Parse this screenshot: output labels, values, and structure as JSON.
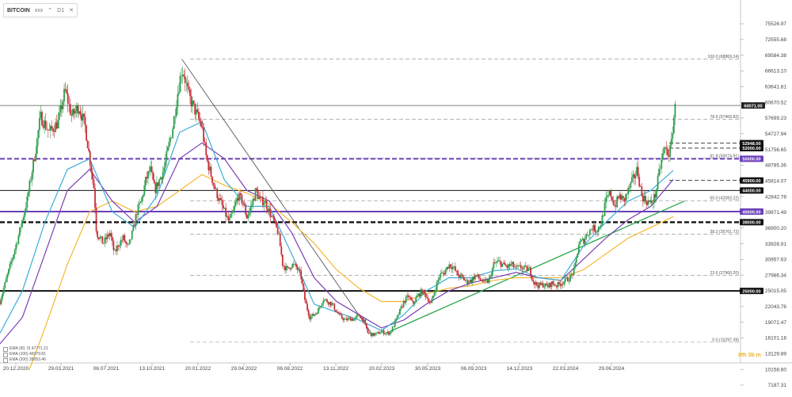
{
  "header": {
    "symbol": "BITCOIN",
    "symbol_suffix": "xxx",
    "dropdown_icon": "caret-down",
    "interval": "D1",
    "close_icon": "close-x"
  },
  "legend": [
    {
      "text": "EMA (50, 0) 47771.21",
      "color": "#3aaed8"
    },
    {
      "text": "EMA (100) 46079.81",
      "color": "#7b3fb5"
    },
    {
      "text": "EMA (200) 39053.46",
      "color": "#f5b830"
    }
  ],
  "brand": "8th 3b m",
  "chart_data": {
    "type": "candlestick",
    "y_axis_ticks": [
      "75526.97",
      "72555.68",
      "69584.38",
      "66613.10",
      "63641.81",
      "60670.52",
      "57699.23",
      "54727.94",
      "51756.65",
      "48785.36",
      "45814.07",
      "42842.78",
      "39871.49",
      "36900.20",
      "33928.91",
      "30957.63",
      "27986.34",
      "25015.05",
      "22043.76",
      "19072.47",
      "16101.18",
      "13129.89",
      "10158.60",
      "7187.31"
    ],
    "y_axis_values": [
      75526.97,
      72555.68,
      69584.38,
      66613.1,
      63641.81,
      60670.52,
      57699.23,
      54727.94,
      51756.65,
      48785.36,
      45814.07,
      42842.78,
      39871.49,
      36900.2,
      33928.91,
      30957.63,
      27986.34,
      25015.05,
      22043.76,
      19072.47,
      16101.18,
      13129.89,
      10158.6,
      7187.31
    ],
    "x_axis_ticks": [
      "20.12.2020",
      "29.03.2021",
      "06.07.2021",
      "13.10.2021",
      "20.01.2022",
      "29.04.2022",
      "06.08.2022",
      "13.11.2022",
      "20.02.2023",
      "30.05.2023",
      "06.09.2023",
      "14.12.2023",
      "22.03.2024",
      "29.06.2024"
    ],
    "current_price": {
      "label": "60071.00",
      "value": 60071.0
    },
    "fib_levels": [
      {
        "label": "100.0 (68869.24)",
        "value": 68869.24
      },
      {
        "label": "78.6 (57469.82)",
        "value": 57469.82
      },
      {
        "label": "61.8 (50074.91)",
        "value": 50074.91
      },
      {
        "label": "50.0 (42083.22)",
        "value": 42083.22
      },
      {
        "label": "38.2 (35761.72)",
        "value": 35761.72
      },
      {
        "label": "23.6 (27960.20)",
        "value": 27960.2
      },
      {
        "label": "0.0 (15297.39)",
        "value": 15297.39
      }
    ],
    "dashed_levels": [
      {
        "label": "52948.00",
        "value": 52948
      },
      {
        "label": "52000.00",
        "value": 52000
      },
      {
        "label": "45900.00",
        "value": 45900
      }
    ],
    "solid_levels": [
      {
        "label": "44000.00",
        "value": 44000
      },
      {
        "label": "25000.00",
        "value": 25000
      }
    ],
    "purple_levels": [
      {
        "label": "50000.00",
        "value": 50000,
        "dashed": true
      },
      {
        "label": "40000.00",
        "value": 40000,
        "dashed": false
      }
    ],
    "thick_dashed_levels": [
      {
        "label": "38000.00",
        "value": 38000
      }
    ],
    "price_path": [
      [
        0,
        23000
      ],
      [
        0.4,
        29000
      ],
      [
        0.8,
        35000
      ],
      [
        1.2,
        42000
      ],
      [
        1.6,
        52000
      ],
      [
        1.8,
        58000
      ],
      [
        2.2,
        55000
      ],
      [
        2.6,
        57000
      ],
      [
        2.9,
        63000
      ],
      [
        3.2,
        58000
      ],
      [
        3.5,
        60000
      ],
      [
        3.8,
        56000
      ],
      [
        4.0,
        50000
      ],
      [
        4.2,
        44000
      ],
      [
        4.3,
        36000
      ],
      [
        4.6,
        34000
      ],
      [
        4.9,
        36000
      ],
      [
        5.1,
        32000
      ],
      [
        5.3,
        34000
      ],
      [
        5.5,
        35000
      ],
      [
        5.7,
        33000
      ],
      [
        5.9,
        36000
      ],
      [
        6.1,
        40000
      ],
      [
        6.3,
        42000
      ],
      [
        6.5,
        46000
      ],
      [
        6.7,
        48000
      ],
      [
        6.9,
        44000
      ],
      [
        7.1,
        46000
      ],
      [
        7.3,
        48000
      ],
      [
        7.5,
        52000
      ],
      [
        7.7,
        56000
      ],
      [
        7.9,
        62000
      ],
      [
        8.1,
        67000
      ],
      [
        8.2,
        66000
      ],
      [
        8.4,
        62000
      ],
      [
        8.6,
        60000
      ],
      [
        8.8,
        58000
      ],
      [
        9.0,
        56000
      ],
      [
        9.2,
        50000
      ],
      [
        9.4,
        47000
      ],
      [
        9.6,
        44000
      ],
      [
        9.8,
        42000
      ],
      [
        10.0,
        40000
      ],
      [
        10.2,
        38000
      ],
      [
        10.4,
        40000
      ],
      [
        10.6,
        43000
      ],
      [
        10.8,
        42000
      ],
      [
        11.0,
        39000
      ],
      [
        11.2,
        41000
      ],
      [
        11.4,
        44000
      ],
      [
        11.6,
        42000
      ],
      [
        11.8,
        42000
      ],
      [
        12.0,
        40000
      ],
      [
        12.2,
        38000
      ],
      [
        12.4,
        36000
      ],
      [
        12.6,
        30000
      ],
      [
        12.8,
        29000
      ],
      [
        13.0,
        30000
      ],
      [
        13.2,
        29500
      ],
      [
        13.4,
        28000
      ],
      [
        13.6,
        23000
      ],
      [
        13.8,
        20000
      ],
      [
        14.0,
        20500
      ],
      [
        14.2,
        21500
      ],
      [
        14.4,
        23500
      ],
      [
        14.6,
        23000
      ],
      [
        14.8,
        22500
      ],
      [
        15.0,
        21000
      ],
      [
        15.2,
        20000
      ],
      [
        15.4,
        19500
      ],
      [
        15.6,
        19800
      ],
      [
        15.8,
        19600
      ],
      [
        16.0,
        20500
      ],
      [
        16.2,
        19500
      ],
      [
        16.4,
        17000
      ],
      [
        16.6,
        16700
      ],
      [
        16.8,
        16900
      ],
      [
        17.0,
        17300
      ],
      [
        17.2,
        17000
      ],
      [
        17.4,
        17100
      ],
      [
        17.6,
        19000
      ],
      [
        17.8,
        21000
      ],
      [
        18.0,
        23000
      ],
      [
        18.2,
        24000
      ],
      [
        18.4,
        22500
      ],
      [
        18.6,
        24000
      ],
      [
        18.8,
        25000
      ],
      [
        19.0,
        24000
      ],
      [
        19.2,
        22500
      ],
      [
        19.4,
        25500
      ],
      [
        19.6,
        28000
      ],
      [
        19.8,
        28500
      ],
      [
        20.0,
        30000
      ],
      [
        20.2,
        29500
      ],
      [
        20.4,
        28000
      ],
      [
        20.6,
        27500
      ],
      [
        20.8,
        26700
      ],
      [
        21.0,
        27000
      ],
      [
        21.2,
        28000
      ],
      [
        21.4,
        27200
      ],
      [
        21.6,
        26500
      ],
      [
        21.8,
        27000
      ],
      [
        22.0,
        30000
      ],
      [
        22.2,
        30500
      ],
      [
        22.4,
        30000
      ],
      [
        22.6,
        29500
      ],
      [
        22.8,
        30000
      ],
      [
        23.0,
        29200
      ],
      [
        23.2,
        29500
      ],
      [
        23.4,
        29200
      ],
      [
        23.6,
        29000
      ],
      [
        23.8,
        26500
      ],
      [
        24.0,
        26000
      ],
      [
        24.2,
        26200
      ],
      [
        24.4,
        25800
      ],
      [
        24.6,
        26500
      ],
      [
        24.8,
        26000
      ],
      [
        25.0,
        26500
      ],
      [
        25.2,
        27000
      ],
      [
        25.4,
        27500
      ],
      [
        25.6,
        29000
      ],
      [
        25.8,
        34000
      ],
      [
        26.0,
        34500
      ],
      [
        26.2,
        36000
      ],
      [
        26.4,
        37000
      ],
      [
        26.6,
        36500
      ],
      [
        26.8,
        38000
      ],
      [
        27.0,
        42000
      ],
      [
        27.2,
        43500
      ],
      [
        27.4,
        41000
      ],
      [
        27.6,
        43000
      ],
      [
        27.8,
        42000
      ],
      [
        28.0,
        44000
      ],
      [
        28.2,
        46000
      ],
      [
        28.4,
        48000
      ],
      [
        28.6,
        43000
      ],
      [
        28.8,
        42000
      ],
      [
        29.0,
        41500
      ],
      [
        29.2,
        43000
      ],
      [
        29.4,
        48000
      ],
      [
        29.6,
        52000
      ],
      [
        29.8,
        51000
      ],
      [
        29.9,
        52000
      ],
      [
        30.0,
        57000
      ],
      [
        30.1,
        60071
      ]
    ],
    "ema_50": [
      [
        0,
        17000
      ],
      [
        1,
        25000
      ],
      [
        2,
        38000
      ],
      [
        3,
        48000
      ],
      [
        4,
        50000
      ],
      [
        5,
        40000
      ],
      [
        6,
        37000
      ],
      [
        7,
        43000
      ],
      [
        8,
        55000
      ],
      [
        9,
        57000
      ],
      [
        10,
        46000
      ],
      [
        11,
        41000
      ],
      [
        12,
        41000
      ],
      [
        13,
        32000
      ],
      [
        14,
        22500
      ],
      [
        15,
        21000
      ],
      [
        16,
        19500
      ],
      [
        17,
        17500
      ],
      [
        18,
        20500
      ],
      [
        19,
        25000
      ],
      [
        20,
        27500
      ],
      [
        21,
        27500
      ],
      [
        22,
        28800
      ],
      [
        23,
        29200
      ],
      [
        24,
        27500
      ],
      [
        25,
        27000
      ],
      [
        26,
        33500
      ],
      [
        27,
        38000
      ],
      [
        28,
        42000
      ],
      [
        29,
        44000
      ],
      [
        30,
        47771
      ]
    ],
    "ema_100": [
      [
        0,
        15000
      ],
      [
        1,
        20000
      ],
      [
        2,
        32000
      ],
      [
        3,
        44000
      ],
      [
        4,
        48000
      ],
      [
        5,
        42000
      ],
      [
        6,
        38000
      ],
      [
        7,
        41000
      ],
      [
        8,
        50000
      ],
      [
        9,
        53000
      ],
      [
        10,
        50000
      ],
      [
        11,
        44000
      ],
      [
        12,
        42000
      ],
      [
        13,
        36000
      ],
      [
        14,
        27500
      ],
      [
        15,
        23000
      ],
      [
        16,
        20500
      ],
      [
        17,
        18000
      ],
      [
        18,
        19500
      ],
      [
        19,
        22500
      ],
      [
        20,
        25000
      ],
      [
        21,
        26500
      ],
      [
        22,
        27500
      ],
      [
        23,
        28500
      ],
      [
        24,
        27500
      ],
      [
        25,
        27000
      ],
      [
        26,
        31000
      ],
      [
        27,
        35000
      ],
      [
        28,
        38500
      ],
      [
        29,
        41000
      ],
      [
        30,
        46079
      ]
    ],
    "ema_200": [
      [
        1.3,
        10000
      ],
      [
        2,
        18000
      ],
      [
        3,
        30000
      ],
      [
        4,
        40000
      ],
      [
        5,
        42000
      ],
      [
        6,
        40000
      ],
      [
        7,
        41000
      ],
      [
        8,
        44000
      ],
      [
        9,
        47000
      ],
      [
        10,
        45000
      ],
      [
        11,
        43500
      ],
      [
        12,
        41500
      ],
      [
        13,
        38000
      ],
      [
        14,
        34000
      ],
      [
        15,
        29000
      ],
      [
        16,
        25500
      ],
      [
        17,
        23000
      ],
      [
        18,
        23000
      ],
      [
        19,
        24500
      ],
      [
        20,
        25500
      ],
      [
        21,
        26000
      ],
      [
        22,
        27000
      ],
      [
        23,
        27500
      ],
      [
        24,
        27500
      ],
      [
        25,
        27500
      ],
      [
        26,
        29000
      ],
      [
        27,
        32000
      ],
      [
        28,
        35000
      ],
      [
        29,
        37000
      ],
      [
        30,
        39053
      ]
    ],
    "downtrend_line": [
      [
        8.1,
        68869
      ],
      [
        16.6,
        16700
      ]
    ],
    "uptrend_line": [
      [
        17.2,
        17000
      ],
      [
        30.5,
        42000
      ]
    ],
    "x_max": 33
  }
}
